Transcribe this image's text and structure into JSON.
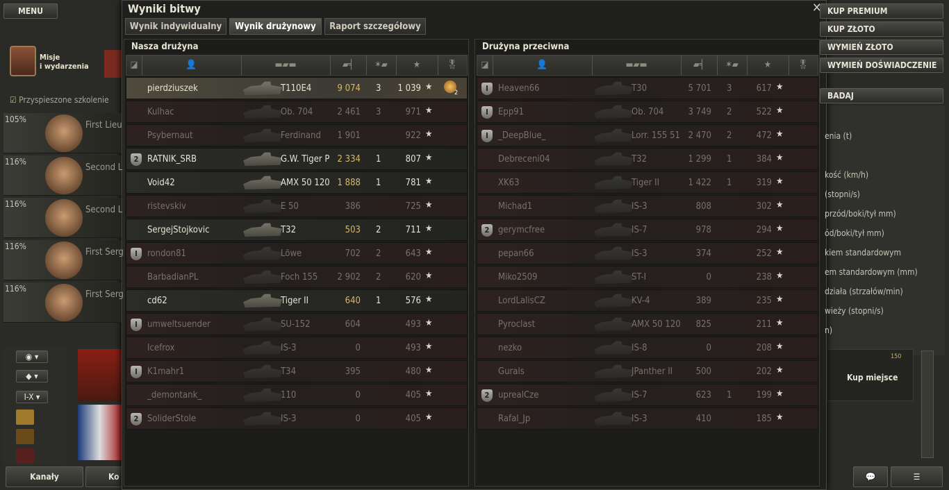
{
  "menu": "MENU",
  "missions": [
    "Misje",
    "i wydarzenia"
  ],
  "training": "Przyspieszone szkolenie",
  "crew": [
    {
      "percent": "105%",
      "rank": "First Lieu"
    },
    {
      "percent": "116%",
      "rank": "Second L"
    },
    {
      "percent": "116%",
      "rank": "Second L"
    },
    {
      "percent": "116%",
      "rank": "First Serg"
    },
    {
      "percent": "116%",
      "rank": "First Serg"
    }
  ],
  "filter": "I-X",
  "bottom_buttons": [
    "Kanały",
    "Ko"
  ],
  "shop_buttons": [
    "KUP PREMIUM",
    "KUP ZŁOTO",
    "WYMIEŃ ZŁOTO",
    "WYMIEŃ DOŚWIADCZENIE"
  ],
  "research": "BADAJ",
  "specs": [
    "enia (t)",
    "kość (km/h)",
    "(stopni/s)",
    "przód/boki/tył mm)",
    "ód/boki/tył mm)",
    "kiem standardowym",
    "em standardowym (mm)",
    "działa (strzałów/min)",
    "wieży (stopni/s)",
    "n)"
  ],
  "buy_slot": {
    "label": "Kup miejsce",
    "price": "150"
  },
  "window": {
    "title": "Wyniki bitwy",
    "tabs": [
      "Wynik indywidualny",
      "Wynik drużynowy",
      "Raport szczegółowy"
    ],
    "active_tab": 1
  },
  "teams": [
    {
      "title": "Nasza drużyna",
      "players": [
        {
          "name": "pierdziuszek",
          "tank": "T110E4",
          "damage": "9 074",
          "kills": "3",
          "xp": "1 039",
          "alive": true,
          "selected": true,
          "medal": "2"
        },
        {
          "name": "Kulhac",
          "tank": "Ob. 704",
          "damage": "2 461",
          "kills": "3",
          "xp": "971"
        },
        {
          "name": "Psybernaut",
          "tank": "Ferdinand",
          "damage": "1 901",
          "xp": "922"
        },
        {
          "name": "RATNIK_SRB",
          "badge": "2",
          "tank": "G.W. Tiger P",
          "damage": "2 334",
          "kills": "1",
          "xp": "807",
          "alive": true
        },
        {
          "name": "Void42",
          "tank": "AMX 50 120",
          "damage": "1 888",
          "kills": "1",
          "xp": "781",
          "alive": true
        },
        {
          "name": "ristevskiv",
          "tank": "E 50",
          "damage": "386",
          "xp": "725"
        },
        {
          "name": "SergejStojkovic",
          "tank": "T32",
          "damage": "503",
          "kills": "2",
          "xp": "711",
          "alive": true
        },
        {
          "name": "rondon81",
          "badge": "I",
          "tank": "Löwe",
          "damage": "702",
          "kills": "2",
          "xp": "643"
        },
        {
          "name": "BarbadianPL",
          "tank": "Foch 155",
          "damage": "2 902",
          "kills": "2",
          "xp": "620"
        },
        {
          "name": "cd62",
          "tank": "Tiger II",
          "damage": "640",
          "kills": "1",
          "xp": "576",
          "alive": true
        },
        {
          "name": "umweltsuender",
          "badge": "I",
          "tank": "SU-152",
          "damage": "604",
          "xp": "493"
        },
        {
          "name": "Icefrox",
          "tank": "IS-3",
          "damage": "0",
          "xp": "493"
        },
        {
          "name": "K1mahr1",
          "badge": "I",
          "tank": "T34",
          "damage": "395",
          "xp": "480"
        },
        {
          "name": "_demontank_",
          "tank": "110",
          "damage": "0",
          "xp": "405"
        },
        {
          "name": "SoliderStole",
          "badge": "2",
          "tank": "IS-3",
          "damage": "0",
          "xp": "405"
        }
      ]
    },
    {
      "title": "Drużyna przeciwna",
      "players": [
        {
          "name": "Heaven66",
          "badge": "I",
          "tank": "T30",
          "damage": "5 701",
          "kills": "3",
          "xp": "617"
        },
        {
          "name": "Epp91",
          "badge": "I",
          "tank": "Ob. 704",
          "damage": "3 749",
          "kills": "2",
          "xp": "522"
        },
        {
          "name": "_DeepBlue_",
          "badge": "I",
          "tank": "Lorr. 155 51",
          "damage": "2 470",
          "kills": "2",
          "xp": "472"
        },
        {
          "name": "Debreceni04",
          "tank": "T32",
          "damage": "1 299",
          "kills": "1",
          "xp": "384"
        },
        {
          "name": "XK63",
          "tank": "Tiger II",
          "damage": "1 422",
          "kills": "1",
          "xp": "319"
        },
        {
          "name": "Michad1",
          "tank": "IS-3",
          "damage": "808",
          "xp": "302"
        },
        {
          "name": "gerymcfree",
          "badge": "2",
          "tank": "IS-7",
          "damage": "978",
          "xp": "294"
        },
        {
          "name": "pepan66",
          "tank": "IS-3",
          "damage": "374",
          "xp": "252"
        },
        {
          "name": "Miko2509",
          "tank": "ST-I",
          "damage": "0",
          "xp": "238"
        },
        {
          "name": "LordLalisCZ",
          "tank": "KV-4",
          "damage": "389",
          "xp": "235"
        },
        {
          "name": "Pyroclast",
          "tank": "AMX 50 120",
          "damage": "825",
          "xp": "211"
        },
        {
          "name": "nezko",
          "tank": "IS-8",
          "damage": "0",
          "xp": "208"
        },
        {
          "name": "Gurals",
          "tank": "JPanther II",
          "damage": "500",
          "xp": "202"
        },
        {
          "name": "uprealCze",
          "badge": "2",
          "tank": "IS-7",
          "damage": "623",
          "kills": "1",
          "xp": "199"
        },
        {
          "name": "Rafal_Jp",
          "tank": "IS-3",
          "damage": "410",
          "xp": "185"
        }
      ]
    }
  ]
}
